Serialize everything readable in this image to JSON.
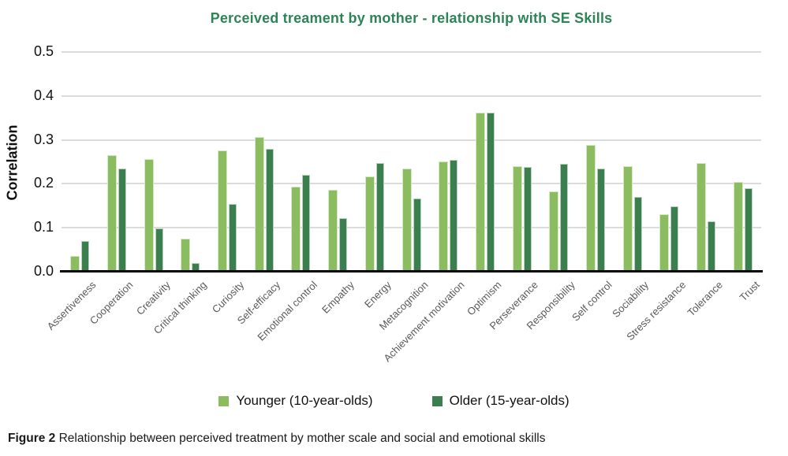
{
  "colors": {
    "title_green": "#2E8456",
    "younger_green": "#8CBC60",
    "older_green": "#3A7F4D",
    "gridline_gray": "#dbdbdb",
    "axis_black": "#000000",
    "x_label_gray": "#595959"
  },
  "chart_data": {
    "type": "bar",
    "title": "Perceived treament by mother - relationship with SE Skills",
    "xlabel": "",
    "ylabel": "Correlation",
    "ylim": [
      0,
      0.5
    ],
    "yticks": [
      "0.0",
      "0.1",
      "0.2",
      "0.3",
      "0.4",
      "0.5"
    ],
    "grid": true,
    "legend_position": "bottom",
    "categories": [
      "Assertiveness",
      "Cooperation",
      "Creativity",
      "Critical thinking",
      "Curiosity",
      "Self-efficacy",
      "Emotional control",
      "Empathy",
      "Energy",
      "Metacognition",
      "Achievement motivation",
      "Optimism",
      "Perseverance",
      "Responsibility",
      "Self control",
      "Sociability",
      "Stress resistance",
      "Tolerance",
      "Trust"
    ],
    "series": [
      {
        "name": "Younger (10-year-olds)",
        "color": "#8CBC60",
        "values": [
          0.035,
          0.265,
          0.257,
          0.076,
          0.276,
          0.307,
          0.193,
          0.186,
          0.216,
          0.235,
          0.251,
          0.362,
          0.241,
          0.182,
          0.288,
          0.241,
          0.131,
          0.247,
          0.205
        ]
      },
      {
        "name": "Older (15-year-olds)",
        "color": "#3A7F4D",
        "values": [
          0.07,
          0.235,
          0.098,
          0.02,
          0.155,
          0.279,
          0.22,
          0.121,
          0.247,
          0.166,
          0.255,
          0.362,
          0.238,
          0.245,
          0.235,
          0.17,
          0.148,
          0.114,
          0.19
        ]
      }
    ]
  },
  "caption": {
    "label": "Figure 2",
    "text": " Relationship between perceived treatment by mother scale and social and emotional skills"
  }
}
